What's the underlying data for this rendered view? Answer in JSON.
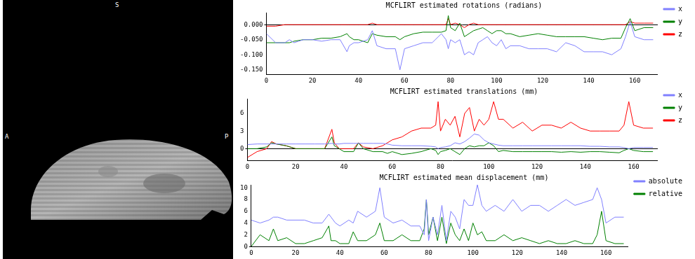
{
  "image": {
    "superior": "S",
    "anterior": "A",
    "posterior": "P"
  },
  "chart_data": [
    {
      "type": "line",
      "title": "MCFLIRT estimated rotations (radians)",
      "x": [
        0,
        4,
        8,
        10,
        12,
        16,
        20,
        24,
        28,
        32,
        35,
        36,
        38,
        40,
        44,
        46,
        48,
        52,
        56,
        58,
        60,
        64,
        68,
        72,
        76,
        78,
        79,
        80,
        82,
        84,
        86,
        88,
        90,
        92,
        94,
        96,
        98,
        100,
        102,
        104,
        106,
        110,
        114,
        118,
        122,
        126,
        130,
        134,
        138,
        142,
        146,
        150,
        154,
        156,
        158,
        160,
        164,
        168
      ],
      "series": [
        {
          "name": "x",
          "color": "#8080ff",
          "values": [
            -0.03,
            -0.06,
            -0.06,
            -0.05,
            -0.06,
            -0.05,
            -0.05,
            -0.055,
            -0.05,
            -0.05,
            -0.09,
            -0.07,
            -0.06,
            -0.06,
            -0.05,
            -0.02,
            -0.07,
            -0.08,
            -0.08,
            -0.15,
            -0.08,
            -0.07,
            -0.06,
            -0.06,
            -0.03,
            -0.05,
            -0.08,
            -0.05,
            -0.06,
            -0.05,
            -0.1,
            -0.09,
            -0.1,
            -0.06,
            -0.05,
            -0.04,
            -0.06,
            -0.07,
            -0.05,
            -0.08,
            -0.07,
            -0.07,
            -0.08,
            -0.08,
            -0.08,
            -0.09,
            -0.06,
            -0.07,
            -0.09,
            -0.09,
            -0.09,
            -0.1,
            -0.08,
            -0.04,
            0.01,
            -0.04,
            -0.05,
            -0.05
          ]
        },
        {
          "name": "y",
          "color": "#008000",
          "values": [
            -0.06,
            -0.06,
            -0.06,
            -0.06,
            -0.055,
            -0.05,
            -0.05,
            -0.045,
            -0.045,
            -0.04,
            -0.03,
            -0.04,
            -0.05,
            -0.05,
            -0.06,
            -0.03,
            -0.035,
            -0.04,
            -0.04,
            -0.05,
            -0.04,
            -0.03,
            -0.025,
            -0.025,
            -0.025,
            -0.02,
            0.03,
            -0.01,
            -0.02,
            0.005,
            -0.04,
            -0.03,
            -0.02,
            -0.015,
            -0.01,
            -0.02,
            -0.03,
            -0.02,
            -0.02,
            -0.03,
            -0.03,
            -0.04,
            -0.035,
            -0.03,
            -0.035,
            -0.04,
            -0.04,
            -0.04,
            -0.04,
            -0.045,
            -0.05,
            -0.045,
            -0.045,
            -0.01,
            0.02,
            -0.02,
            -0.01,
            -0.01
          ]
        },
        {
          "name": "z",
          "color": "#ff0000",
          "values": [
            -0.005,
            -0.005,
            0,
            0,
            0,
            0,
            0,
            0,
            0,
            0,
            0,
            0,
            0,
            0,
            0,
            0.005,
            0,
            0,
            0,
            0,
            0,
            0,
            0,
            0,
            0,
            0,
            0.02,
            0,
            0.005,
            0,
            -0.01,
            0,
            0.005,
            0,
            0,
            0,
            0,
            0,
            0,
            0,
            0,
            0,
            0,
            0,
            0,
            0,
            0,
            0,
            0,
            0,
            0,
            0,
            0,
            0,
            0.01,
            0.005,
            0.005,
            0.005
          ]
        }
      ],
      "xlim": [
        0,
        170
      ],
      "xticks": [
        0,
        20,
        40,
        60,
        80,
        100,
        120,
        140,
        160
      ],
      "ylim": [
        -0.165,
        0.04
      ],
      "yticks": [
        {
          "value": 0,
          "label": "0.000"
        },
        {
          "value": -0.05,
          "label": "-0.050"
        },
        {
          "value": -0.1,
          "label": "-0.100"
        },
        {
          "value": -0.15,
          "label": "-0.150"
        }
      ],
      "grid": false,
      "legend": "right"
    },
    {
      "type": "line",
      "title": "MCFLIRT estimated translations (mm)",
      "x": [
        0,
        4,
        8,
        10,
        12,
        16,
        20,
        24,
        28,
        32,
        35,
        36,
        38,
        40,
        44,
        46,
        48,
        52,
        56,
        58,
        60,
        64,
        68,
        72,
        76,
        78,
        79,
        80,
        82,
        84,
        86,
        88,
        90,
        92,
        94,
        96,
        98,
        100,
        102,
        104,
        106,
        110,
        114,
        118,
        122,
        126,
        130,
        134,
        138,
        142,
        146,
        150,
        154,
        156,
        158,
        160,
        164,
        168
      ],
      "series": [
        {
          "name": "x",
          "color": "#8080ff",
          "values": [
            0.7,
            0.8,
            0.8,
            0.8,
            0.8,
            0.8,
            0.8,
            0.8,
            0.8,
            0.8,
            0.9,
            0.8,
            0.8,
            0.9,
            0.9,
            0.9,
            0.9,
            0.9,
            0.9,
            0.8,
            0.6,
            0.5,
            0.5,
            0.5,
            0.4,
            0.3,
            0,
            0.2,
            0.3,
            0.5,
            1,
            0.8,
            1.2,
            1.8,
            2.5,
            2.3,
            1.5,
            1,
            0.8,
            0.6,
            0.5,
            0.5,
            0.5,
            0.5,
            0.5,
            0.5,
            0.5,
            0.5,
            0.5,
            0.4,
            0.4,
            0.3,
            0.3,
            0.2,
            0,
            0.2,
            0.2,
            0.2
          ]
        },
        {
          "name": "y",
          "color": "#008000",
          "values": [
            0,
            0,
            0.3,
            1,
            0.8,
            0.5,
            0,
            0,
            0,
            0,
            2,
            0.5,
            0,
            -0.5,
            -0.5,
            1,
            0,
            -0.5,
            -0.5,
            -0.8,
            -0.5,
            -1,
            -0.8,
            -0.5,
            0,
            -0.3,
            -1,
            -0.5,
            -0.3,
            0,
            -0.5,
            -1,
            0,
            0.5,
            0.3,
            0.5,
            0.5,
            1,
            0.5,
            -0.5,
            -0.3,
            -0.5,
            -0.5,
            -0.5,
            -0.5,
            -0.5,
            -0.6,
            -0.5,
            -0.6,
            -0.5,
            -0.5,
            -0.6,
            -0.7,
            -0.3,
            0,
            -0.3,
            -0.5,
            -0.5
          ]
        },
        {
          "name": "z",
          "color": "#ff0000",
          "values": [
            -1.5,
            -0.5,
            0,
            1.2,
            0.8,
            0.5,
            0,
            0,
            0,
            0,
            3.3,
            1,
            0,
            0,
            0,
            1,
            0.3,
            0,
            0.5,
            1,
            1.5,
            2,
            3,
            3.5,
            3.5,
            4,
            8,
            3,
            5,
            4,
            5.5,
            2,
            6,
            7,
            3,
            5,
            4,
            5,
            8,
            5,
            5,
            3.5,
            4.5,
            3,
            4,
            4,
            3.5,
            4.5,
            3.5,
            3,
            3,
            3,
            3,
            4,
            8,
            4,
            3.5,
            3.5
          ]
        }
      ],
      "xlim": [
        0,
        170
      ],
      "xticks": [
        0,
        20,
        40,
        60,
        80,
        100,
        120,
        140,
        160
      ],
      "ylim": [
        -2,
        8.5
      ],
      "yticks": [
        0,
        3,
        6
      ],
      "grid": false,
      "legend": "right"
    },
    {
      "type": "line",
      "title": "MCFLIRT estimated mean displacement (mm)",
      "x": [
        0,
        4,
        8,
        10,
        12,
        16,
        20,
        24,
        28,
        32,
        35,
        36,
        38,
        40,
        44,
        46,
        48,
        52,
        56,
        58,
        60,
        64,
        68,
        72,
        76,
        78,
        79,
        80,
        82,
        84,
        86,
        88,
        90,
        92,
        94,
        96,
        98,
        100,
        102,
        104,
        106,
        110,
        114,
        118,
        122,
        126,
        130,
        134,
        138,
        142,
        146,
        150,
        154,
        156,
        158,
        160,
        164,
        168
      ],
      "series": [
        {
          "name": "absolute",
          "color": "#8080ff",
          "values": [
            4.5,
            4,
            4.5,
            5,
            5,
            4.5,
            4.5,
            4.5,
            4,
            4,
            5.5,
            5,
            4,
            3.5,
            4.5,
            4,
            6,
            5,
            6,
            10,
            5,
            4,
            4.5,
            3.5,
            3.5,
            2,
            8,
            1,
            5,
            2,
            7,
            1,
            6,
            5,
            3,
            8,
            7,
            7,
            10.5,
            7,
            6,
            7,
            6,
            8,
            6,
            7,
            7,
            6,
            7,
            8,
            7,
            7.5,
            8,
            10,
            8,
            4,
            5,
            5
          ]
        },
        {
          "name": "relative",
          "color": "#008000",
          "values": [
            0,
            2,
            1,
            3,
            1,
            1.5,
            0.5,
            0.5,
            1,
            1.5,
            3.5,
            1,
            1,
            0.5,
            0.5,
            2.5,
            1,
            1,
            2,
            4,
            1,
            1,
            2,
            1,
            1,
            3,
            8,
            2,
            5,
            1,
            5,
            0.5,
            4,
            2,
            1,
            3,
            1,
            4,
            2,
            2.5,
            1,
            1,
            2,
            1,
            1.5,
            1,
            0.5,
            1,
            0.5,
            0.5,
            1,
            0.5,
            0.5,
            2,
            6,
            1,
            0.5,
            0.5
          ]
        }
      ],
      "xlim": [
        0,
        170
      ],
      "xticks": [
        0,
        20,
        40,
        60,
        80,
        100,
        120,
        140,
        160
      ],
      "ylim": [
        0,
        10.5
      ],
      "yticks": [
        0,
        2,
        4,
        6,
        8,
        10
      ],
      "grid": false,
      "legend": "right"
    }
  ]
}
